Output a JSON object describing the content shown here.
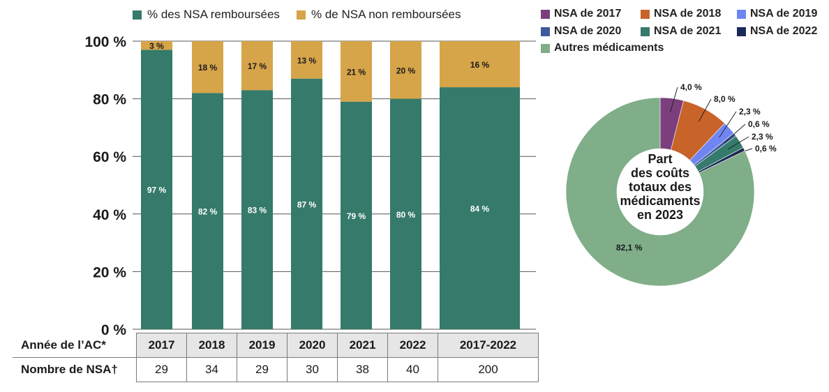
{
  "chart_data": [
    {
      "type": "bar",
      "stacked": true,
      "categories": [
        "2017",
        "2018",
        "2019",
        "2020",
        "2021",
        "2022",
        "2017-2022"
      ],
      "series": [
        {
          "name": "% des NSA remboursées",
          "color": "#357A6A",
          "values": [
            97,
            82,
            83,
            87,
            79,
            80,
            84
          ],
          "labels": [
            "97 %",
            "82 %",
            "83 %",
            "87 %",
            "79 %",
            "80 %",
            "84 %"
          ]
        },
        {
          "name": "% de NSA non remboursées",
          "color": "#D6A449",
          "values": [
            3,
            18,
            17,
            13,
            21,
            20,
            16
          ],
          "labels": [
            "3 %",
            "18 %",
            "17 %",
            "13 %",
            "21 %",
            "20 %",
            "16 %"
          ]
        }
      ],
      "ylim": [
        0,
        100
      ],
      "yticks": [
        "0 %",
        "20 %",
        "40 %",
        "60 %",
        "80 %",
        "100 %"
      ],
      "grid": true,
      "legend": "top",
      "xlabel": "Année de l’AC*",
      "table_row_label": "Nombre de NSA†",
      "table_row_values": [
        "29",
        "34",
        "29",
        "30",
        "38",
        "40",
        "200"
      ]
    },
    {
      "type": "pie",
      "donut": true,
      "center_label": [
        "Part",
        "des coûts",
        "totaux des",
        "médicaments",
        "en 2023"
      ],
      "slices": [
        {
          "name": "NSA de 2017",
          "value": 4.0,
          "label": "4,0 %",
          "color": "#7B3F7E"
        },
        {
          "name": "NSA de 2018",
          "value": 8.0,
          "label": "8,0 %",
          "color": "#C8632A"
        },
        {
          "name": "NSA de 2019",
          "value": 2.3,
          "label": "2,3 %",
          "color": "#6F86F2"
        },
        {
          "name": "NSA de 2020",
          "value": 0.6,
          "label": "0,6 %",
          "color": "#3E5A9E"
        },
        {
          "name": "NSA de 2021",
          "value": 2.3,
          "label": "2,3 %",
          "color": "#357A6A"
        },
        {
          "name": "NSA de 2022",
          "value": 0.6,
          "label": "0,6 %",
          "color": "#1C2A5A"
        },
        {
          "name": "Autres médicaments",
          "value": 82.1,
          "label": "82,1 %",
          "color": "#7FAE88"
        }
      ],
      "legend": "top"
    }
  ]
}
